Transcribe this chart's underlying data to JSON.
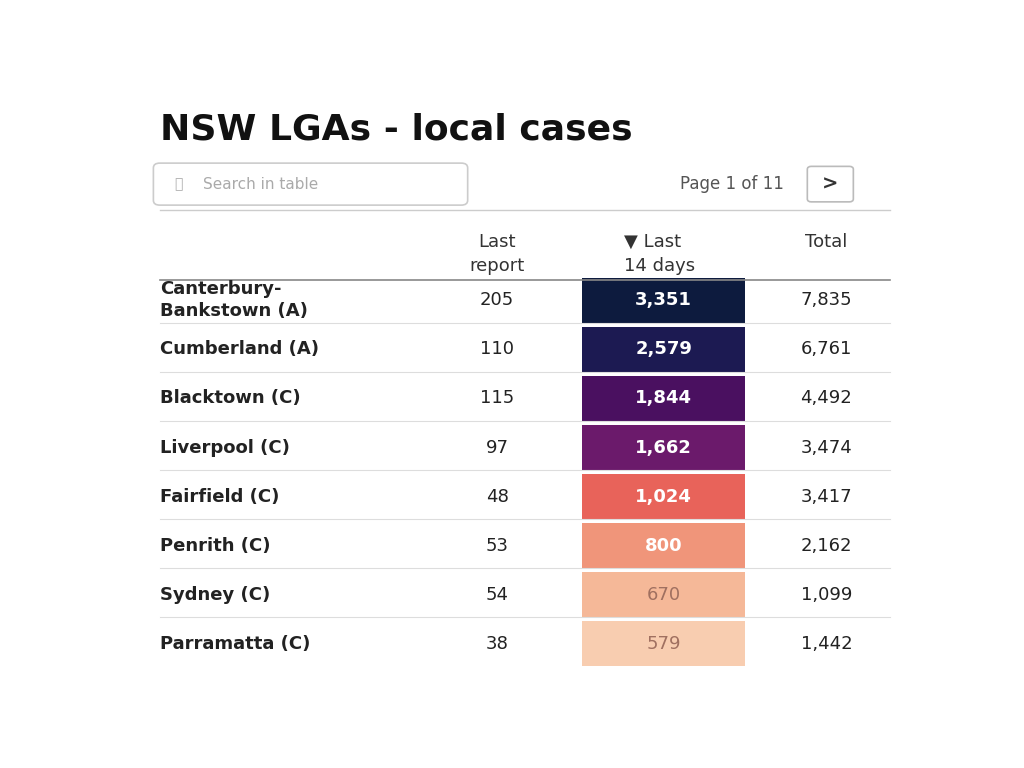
{
  "title": "NSW LGAs - local cases",
  "search_placeholder": "Search in table",
  "page_info": "Page 1 of 11",
  "rows": [
    {
      "lga": "Canterbury-\nBankstown (A)",
      "last_report": "205",
      "last_14": "3,351",
      "total": "7,835"
    },
    {
      "lga": "Cumberland (A)",
      "last_report": "110",
      "last_14": "2,579",
      "total": "6,761"
    },
    {
      "lga": "Blacktown (C)",
      "last_report": "115",
      "last_14": "1,844",
      "total": "4,492"
    },
    {
      "lga": "Liverpool (C)",
      "last_report": "97",
      "last_14": "1,662",
      "total": "3,474"
    },
    {
      "lga": "Fairfield (C)",
      "last_report": "48",
      "last_14": "1,024",
      "total": "3,417"
    },
    {
      "lga": "Penrith (C)",
      "last_report": "53",
      "last_14": "800",
      "total": "2,162"
    },
    {
      "lga": "Sydney (C)",
      "last_report": "54",
      "last_14": "670",
      "total": "1,099"
    },
    {
      "lga": "Parramatta (C)",
      "last_report": "38",
      "last_14": "579",
      "total": "1,442"
    }
  ],
  "cell_colors": [
    "#0d1b3e",
    "#1c1a52",
    "#4a1060",
    "#6b1a6b",
    "#e8635a",
    "#f0957a",
    "#f5b898",
    "#f8cdb0"
  ],
  "text_colors_14days": [
    "#ffffff",
    "#ffffff",
    "#ffffff",
    "#ffffff",
    "#ffffff",
    "#ffffff",
    "#a07060",
    "#a07060"
  ],
  "bg_color": "#ffffff",
  "header_color": "#333333",
  "row_text_color": "#222222",
  "title_fontsize": 26,
  "header_fontsize": 13,
  "cell_fontsize": 13,
  "lga_fontsize": 13
}
